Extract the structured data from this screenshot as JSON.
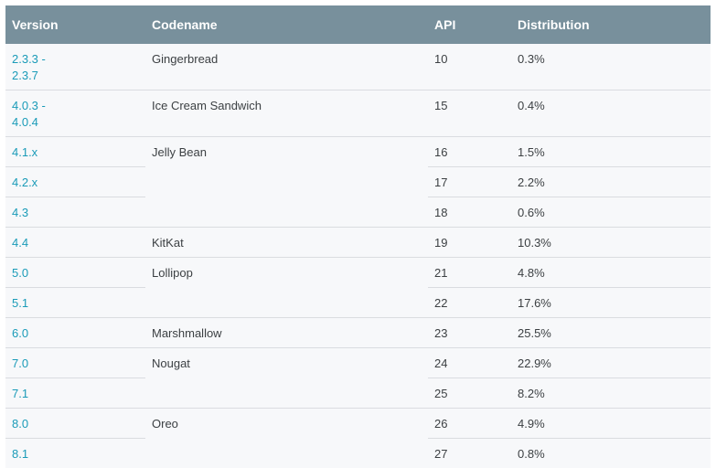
{
  "header": {
    "version": "Version",
    "codename": "Codename",
    "api": "API",
    "distribution": "Distribution"
  },
  "rows": [
    {
      "version": "2.3.3 -\n2.3.7",
      "codename": "Gingerbread",
      "api": "10",
      "distribution": "0.3%"
    },
    {
      "version": "4.0.3 -\n4.0.4",
      "codename": "Ice Cream Sandwich",
      "api": "15",
      "distribution": "0.4%"
    },
    {
      "version": "4.1.x",
      "codename": "Jelly Bean",
      "api": "16",
      "distribution": "1.5%"
    },
    {
      "version": "4.2.x",
      "api": "17",
      "distribution": "2.2%"
    },
    {
      "version": "4.3",
      "api": "18",
      "distribution": "0.6%"
    },
    {
      "version": "4.4",
      "codename": "KitKat",
      "api": "19",
      "distribution": "10.3%"
    },
    {
      "version": "5.0",
      "codename": "Lollipop",
      "api": "21",
      "distribution": "4.8%"
    },
    {
      "version": "5.1",
      "api": "22",
      "distribution": "17.6%"
    },
    {
      "version": "6.0",
      "codename": "Marshmallow",
      "api": "23",
      "distribution": "25.5%"
    },
    {
      "version": "7.0",
      "codename": "Nougat",
      "api": "24",
      "distribution": "22.9%"
    },
    {
      "version": "7.1",
      "api": "25",
      "distribution": "8.2%"
    },
    {
      "version": "8.0",
      "codename": "Oreo",
      "api": "26",
      "distribution": "4.9%"
    },
    {
      "version": "8.1",
      "api": "27",
      "distribution": "0.8%"
    }
  ]
}
